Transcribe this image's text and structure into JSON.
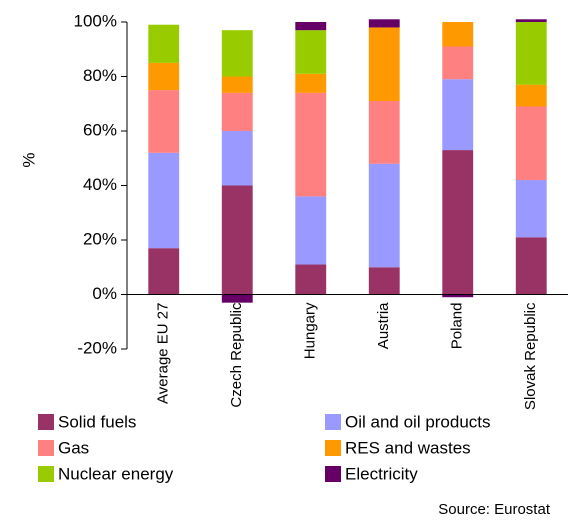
{
  "chart_data": {
    "type": "stacked-bar",
    "y_label": "%",
    "source": "Source: Eurostat",
    "categories": [
      "Average EU 27",
      "Czech Republic",
      "Hungary",
      "Austria",
      "Poland",
      "Slovak Republic"
    ],
    "series": [
      {
        "name": "Solid fuels",
        "color": "#993366",
        "values": [
          17,
          40,
          11,
          10,
          53,
          21
        ]
      },
      {
        "name": "Oil and oil products",
        "color": "#9999ff",
        "values": [
          35,
          20,
          25,
          38,
          26,
          21
        ]
      },
      {
        "name": "Gas",
        "color": "#ff8080",
        "values": [
          23,
          14,
          38,
          23,
          12,
          27
        ]
      },
      {
        "name": "RES and wastes",
        "color": "#ff9900",
        "values": [
          10,
          6,
          7,
          27,
          9,
          8
        ]
      },
      {
        "name": "Nuclear energy",
        "color": "#99cc00",
        "values": [
          14,
          17,
          16,
          0,
          0,
          23
        ]
      },
      {
        "name": "Electricity",
        "color": "#660066",
        "values": [
          0,
          -3,
          3,
          3,
          -1,
          1
        ]
      }
    ],
    "ylim": [
      -20,
      100
    ],
    "yticks": [
      {
        "value": -20,
        "label": "-20%"
      },
      {
        "value": 0,
        "label": "0%"
      },
      {
        "value": 20,
        "label": "20%"
      },
      {
        "value": 40,
        "label": "40%"
      },
      {
        "value": 60,
        "label": "60%"
      },
      {
        "value": 80,
        "label": "80%"
      },
      {
        "value": 100,
        "label": "100%"
      }
    ]
  }
}
